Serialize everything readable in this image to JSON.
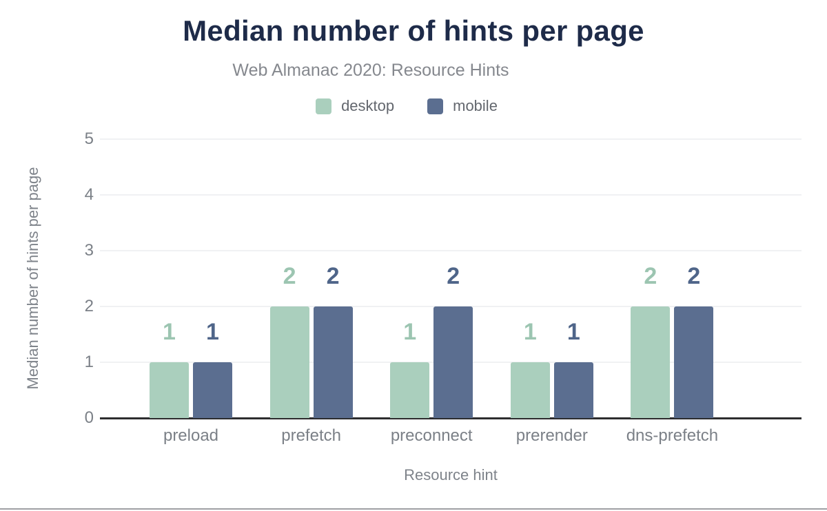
{
  "chart_data": {
    "type": "bar",
    "title": "Median number of hints per page",
    "subtitle": "Web Almanac 2020: Resource Hints",
    "categories": [
      "preload",
      "prefetch",
      "preconnect",
      "prerender",
      "dns-prefetch"
    ],
    "series": [
      {
        "name": "desktop",
        "color": "#aacfbd",
        "label_color": "#9cc5b1",
        "values": [
          1,
          2,
          1,
          1,
          2
        ]
      },
      {
        "name": "mobile",
        "color": "#5b6e90",
        "label_color": "#4f6589",
        "values": [
          1,
          2,
          2,
          1,
          2
        ]
      }
    ],
    "xlabel": "Resource hint",
    "ylabel": "Median number of hints per page",
    "ylim": [
      0,
      5
    ],
    "yticks": [
      0,
      1,
      2,
      3,
      4,
      5
    ],
    "grid": true,
    "legend_position": "top",
    "value_labels": true
  },
  "colors": {
    "background": "#ffffff",
    "title": "#1e2b49",
    "subtitle": "#85888e",
    "legend_text": "#63676e",
    "axis_text": "#7b8087",
    "axis_title": "#7e838a",
    "gridline": "#f0f1f3",
    "baseline": "#2c2c2e",
    "footer_rule": "#9e9fa3"
  }
}
